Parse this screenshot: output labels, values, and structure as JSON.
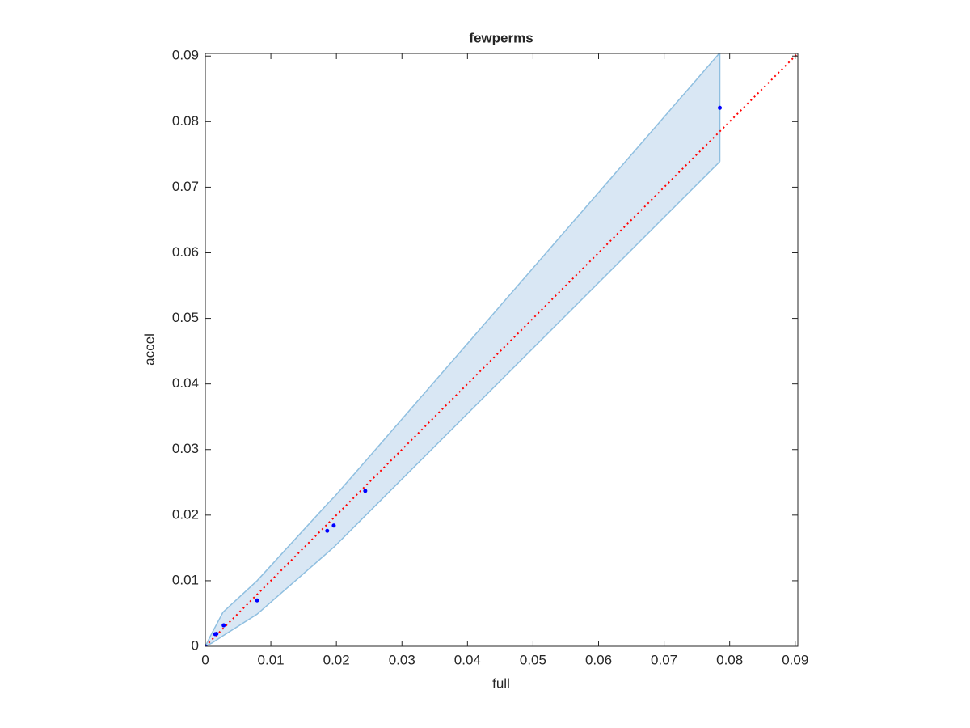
{
  "chart_data": {
    "type": "scatter",
    "title": "fewperms",
    "x_label": "full",
    "y_label": "accel",
    "xlim": [
      0,
      0.0904
    ],
    "ylim": [
      0,
      0.0904
    ],
    "xticks": [
      0,
      0.01,
      0.02,
      0.03,
      0.04,
      0.05,
      0.06,
      0.07,
      0.08,
      0.09
    ],
    "yticks": [
      0,
      0.01,
      0.02,
      0.03,
      0.04,
      0.05,
      0.06,
      0.07,
      0.08,
      0.09
    ],
    "grid": false,
    "series": [
      {
        "color": "#0000ff",
        "x": [
          0,
          0.0015,
          0.0017,
          0.0028,
          0.0079,
          0.0186,
          0.0196,
          0.0244,
          0.0785
        ],
        "values": [
          0,
          0.00185,
          0.0019,
          0.0032,
          0.007,
          0.0176,
          0.0184,
          0.0237,
          0.0821
        ]
      }
    ],
    "band": {
      "fill": "#d9e7f4",
      "edge": "#8fbfe0",
      "x": [
        0,
        0.001,
        0.0027,
        0.0079,
        0.0189,
        0.0197,
        0.0245,
        0.0785
      ],
      "upper": [
        0,
        0.002,
        0.0052,
        0.01,
        0.022,
        0.0228,
        0.0283,
        0.0905
      ],
      "lower": [
        0,
        0.0005,
        0.0016,
        0.0049,
        0.0145,
        0.0152,
        0.02,
        0.0739
      ]
    },
    "reference_line": {
      "color": "#ff0000",
      "x": [
        0,
        0.0904
      ],
      "y": [
        0,
        0.0904
      ]
    }
  }
}
